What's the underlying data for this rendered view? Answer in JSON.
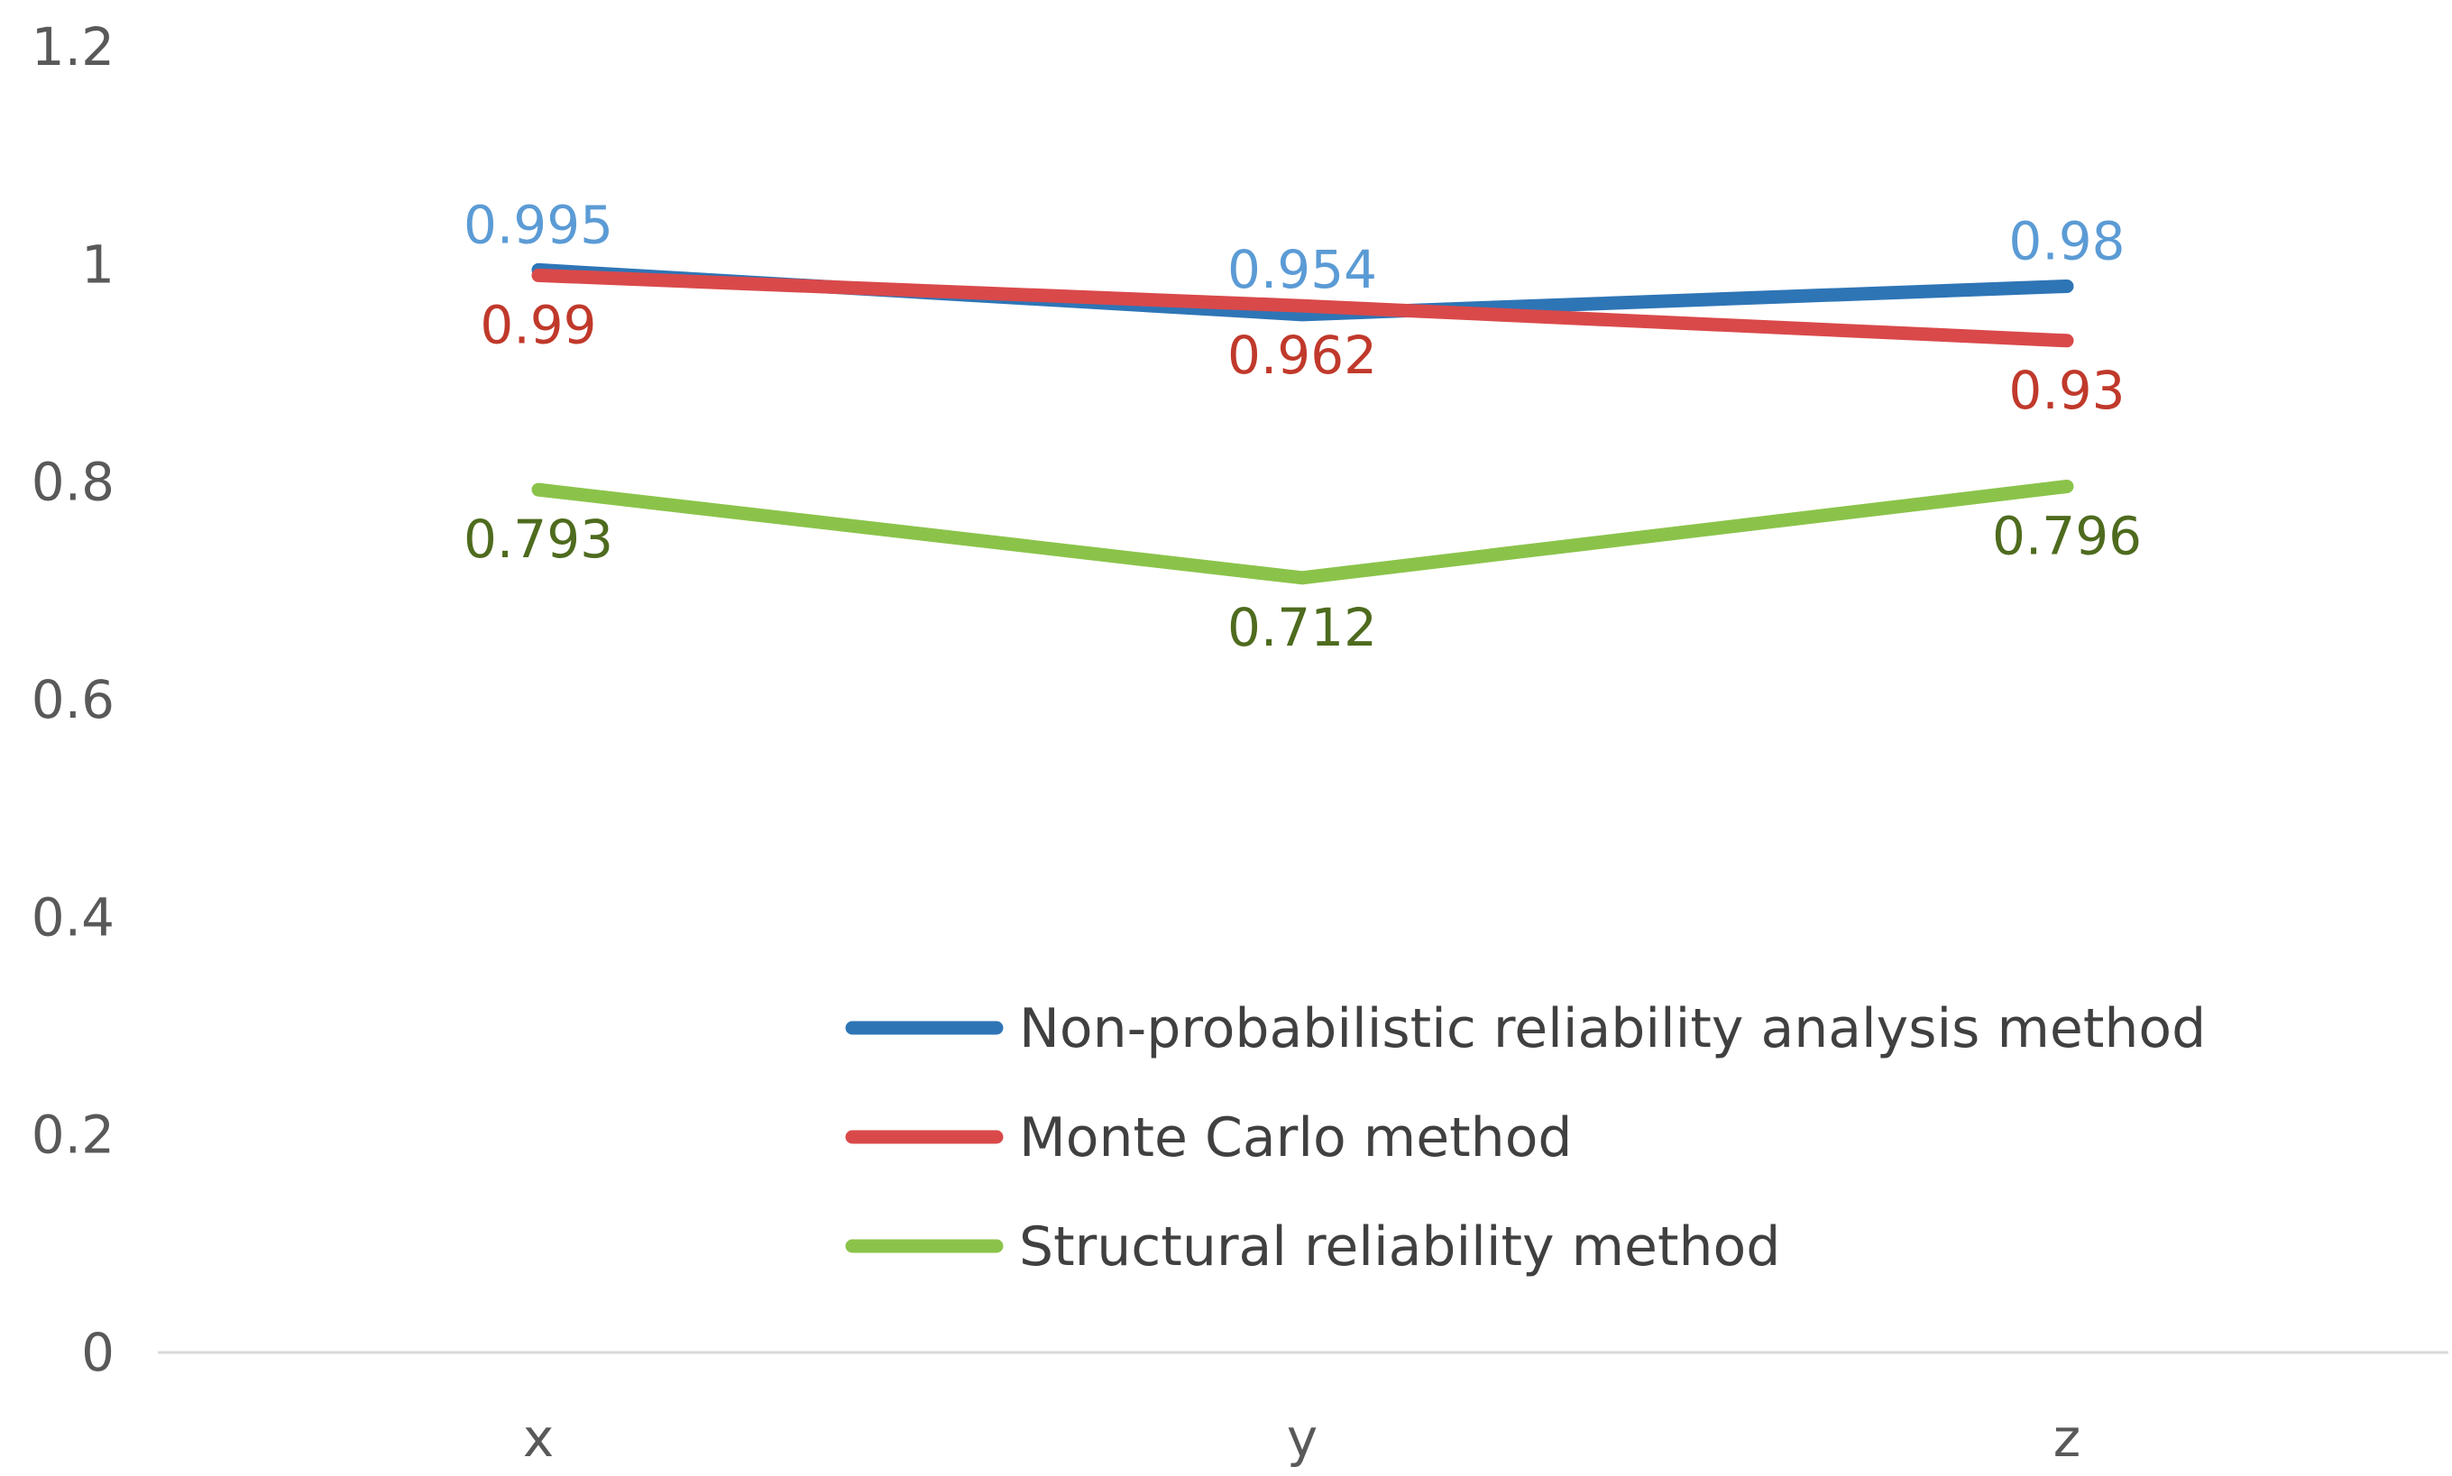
{
  "chart_data": {
    "type": "line",
    "title": "",
    "xlabel": "",
    "ylabel": "",
    "categories": [
      "x",
      "y",
      "z"
    ],
    "ylim": [
      0,
      1.2
    ],
    "yticks": [
      "0",
      "0.2",
      "0.4",
      "0.6",
      "0.8",
      "1",
      "1.2"
    ],
    "grid": false,
    "legend_position": "bottom-right",
    "series": [
      {
        "name": "Non-probabilistic reliability analysis method",
        "values": [
          0.995,
          0.954,
          0.98
        ],
        "labels": [
          "0.995",
          "0.954",
          "0.98"
        ],
        "color": "#2E75B6",
        "label_color": "#5B9BD5",
        "label_position": "above"
      },
      {
        "name": "Monte Carlo method",
        "values": [
          0.99,
          0.962,
          0.93
        ],
        "labels": [
          "0.99",
          "0.962",
          "0.93"
        ],
        "color": "#D9494A",
        "label_color": "#C0392B",
        "label_position": "below"
      },
      {
        "name": "Structural reliability method",
        "values": [
          0.793,
          0.712,
          0.796
        ],
        "labels": [
          "0.793",
          "0.712",
          "0.796"
        ],
        "color": "#8BC34A",
        "label_color": "#4E6B1E",
        "label_position": "below"
      }
    ]
  }
}
